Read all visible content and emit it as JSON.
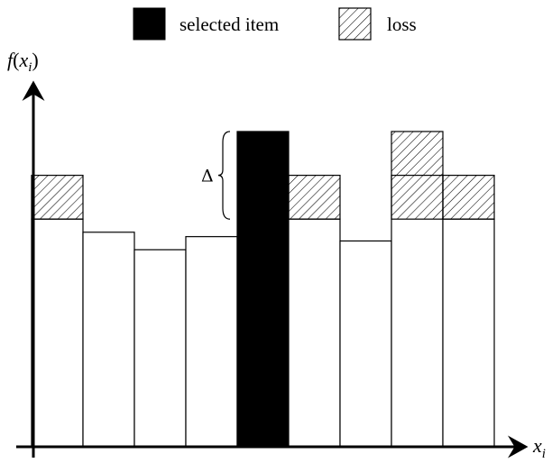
{
  "chart_data": {
    "type": "bar",
    "categories": [
      "",
      "",
      "",
      "",
      "",
      "",
      "",
      "",
      ""
    ],
    "values": [
      0.52,
      0.49,
      0.45,
      0.48,
      0.72,
      0.52,
      0.47,
      0.62,
      0.52
    ],
    "loss_top": [
      0.62,
      null,
      null,
      null,
      null,
      0.62,
      null,
      0.72,
      0.62
    ],
    "loss_base": 0.52,
    "selected_index": 4,
    "ylim": [
      0,
      0.72
    ],
    "xlabel": {
      "base": "x",
      "sub": "i"
    },
    "ylabel": {
      "func": "f",
      "base": "x",
      "sub": "i"
    },
    "annotation": "Δ",
    "legend": [
      {
        "name": "selected item",
        "style": "solid",
        "color": "#000000"
      },
      {
        "name": "loss",
        "style": "hatched",
        "color": "#000000"
      }
    ],
    "legend_position": "top-center",
    "grid": false
  },
  "colors": {
    "bar_fill": "#ffffff",
    "selected_fill": "#000000",
    "stroke": "#000000"
  }
}
